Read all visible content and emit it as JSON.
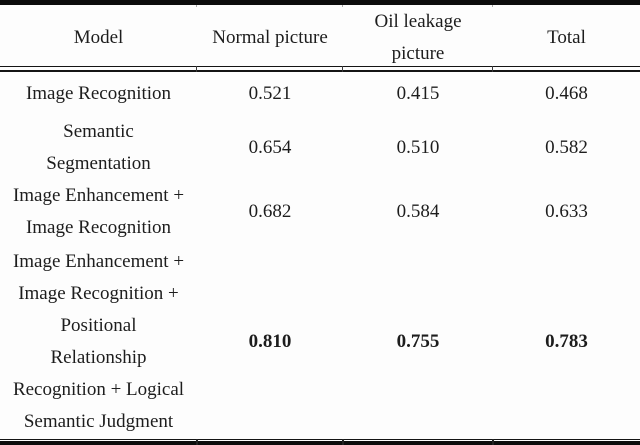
{
  "table": {
    "headers": {
      "model": "Model",
      "normal": "Normal picture",
      "oil": "Oil leakage\npicture",
      "total": "Total"
    },
    "rows": [
      {
        "model": "Image Recognition",
        "normal": "0.521",
        "oil": "0.415",
        "total": "0.468"
      },
      {
        "model": "Semantic\nSegmentation",
        "normal": "0.654",
        "oil": "0.510",
        "total": "0.582"
      },
      {
        "model": "Image Enhancement +\nImage Recognition",
        "normal": "0.682",
        "oil": "0.584",
        "total": "0.633"
      },
      {
        "model": "Image Enhancement +\nImage Recognition +\nPositional\nRelationship\nRecognition + Logical\nSemantic Judgment",
        "normal": "0.810",
        "oil": "0.755",
        "total": "0.783"
      }
    ],
    "colors": {
      "text": "#1d1d1d",
      "rule": "#0c0c0c",
      "background": "#fdfdfd"
    }
  }
}
